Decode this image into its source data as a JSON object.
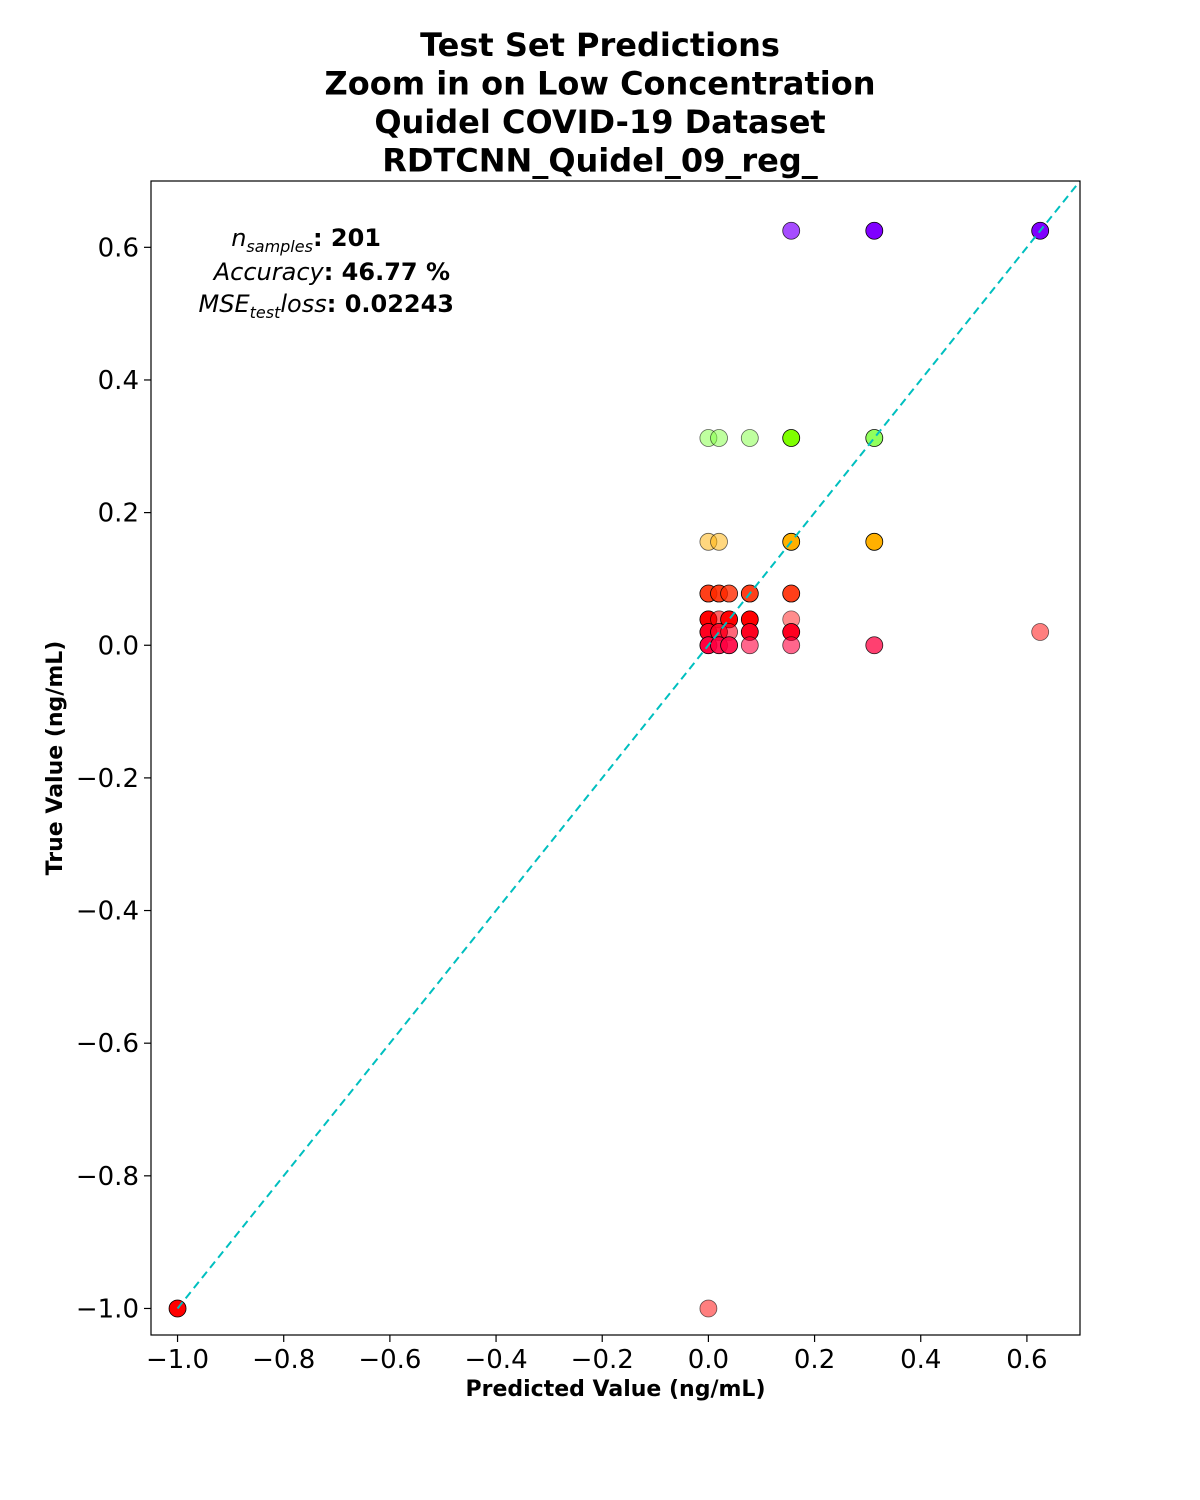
{
  "chart_data": {
    "type": "scatter",
    "title": [
      "Test Set Predictions",
      "Zoom in on Low Concentration",
      "Quidel COVID-19 Dataset",
      "RDTCNN_Quidel_09_reg_"
    ],
    "xlabel": "Predicted Value (ng/mL)",
    "ylabel": "True Value (ng/mL)",
    "xlim": [
      -1.05,
      0.7
    ],
    "ylim": [
      -1.04,
      0.7
    ],
    "xticks": [
      -1.0,
      -0.8,
      -0.6,
      -0.4,
      -0.2,
      0.0,
      0.2,
      0.4,
      0.6
    ],
    "xtick_labels": [
      "−1.0",
      "−0.8",
      "−0.6",
      "−0.4",
      "−0.2",
      "0.0",
      "0.2",
      "0.4",
      "0.6"
    ],
    "yticks": [
      -1.0,
      -0.8,
      -0.6,
      -0.4,
      -0.2,
      0.0,
      0.2,
      0.4,
      0.6
    ],
    "ytick_labels": [
      "−1.0",
      "−0.8",
      "−0.6",
      "−0.4",
      "−0.2",
      "0.0",
      "0.2",
      "0.4",
      "0.6"
    ],
    "grid": false,
    "reference_line": {
      "type": "identity",
      "color": "#00bfbf",
      "style": "dashed"
    },
    "stats": {
      "n_label": "n",
      "n_sub": "samples",
      "n_value": ": 201",
      "acc_label": "Accuracy",
      "acc_value": ":  46.77 %",
      "mse_label": "MSE",
      "mse_sub": "test",
      "mse_label2": "loss",
      "mse_value": ":  0.02243"
    },
    "points": [
      {
        "x": 0.156,
        "y": 0.625,
        "color": "#8000ff",
        "alpha": 0.7
      },
      {
        "x": 0.3125,
        "y": 0.625,
        "color": "#8000ff",
        "alpha": 1.0
      },
      {
        "x": 0.625,
        "y": 0.625,
        "color": "#8000ff",
        "alpha": 1.0
      },
      {
        "x": 0.0,
        "y": 0.3125,
        "color": "#7fff40",
        "alpha": 0.5
      },
      {
        "x": 0.02,
        "y": 0.3125,
        "color": "#7fff40",
        "alpha": 0.5
      },
      {
        "x": 0.078,
        "y": 0.3125,
        "color": "#7fff40",
        "alpha": 0.5
      },
      {
        "x": 0.156,
        "y": 0.3125,
        "color": "#7fff00",
        "alpha": 1.0
      },
      {
        "x": 0.3125,
        "y": 0.3125,
        "color": "#7fff40",
        "alpha": 0.85
      },
      {
        "x": 0.0,
        "y": 0.156,
        "color": "#ffb000",
        "alpha": 0.5
      },
      {
        "x": 0.02,
        "y": 0.156,
        "color": "#ffb000",
        "alpha": 0.5
      },
      {
        "x": 0.156,
        "y": 0.156,
        "color": "#ffb000",
        "alpha": 1.0
      },
      {
        "x": 0.3125,
        "y": 0.156,
        "color": "#ffb000",
        "alpha": 1.0
      },
      {
        "x": 0.0,
        "y": 0.078,
        "color": "#ff2a00",
        "alpha": 0.9
      },
      {
        "x": 0.02,
        "y": 0.078,
        "color": "#ff2a00",
        "alpha": 0.9
      },
      {
        "x": 0.039,
        "y": 0.078,
        "color": "#ff2a00",
        "alpha": 0.8
      },
      {
        "x": 0.078,
        "y": 0.078,
        "color": "#ff2a00",
        "alpha": 0.9
      },
      {
        "x": 0.156,
        "y": 0.078,
        "color": "#ff2a00",
        "alpha": 0.9
      },
      {
        "x": 0.0,
        "y": 0.039,
        "color": "#ff0000",
        "alpha": 1.0
      },
      {
        "x": 0.02,
        "y": 0.039,
        "color": "#ff0000",
        "alpha": 0.6
      },
      {
        "x": 0.039,
        "y": 0.039,
        "color": "#ff0000",
        "alpha": 1.0
      },
      {
        "x": 0.078,
        "y": 0.039,
        "color": "#ff0000",
        "alpha": 1.0
      },
      {
        "x": 0.156,
        "y": 0.039,
        "color": "#ff0000",
        "alpha": 0.45
      },
      {
        "x": 0.0,
        "y": 0.02,
        "color": "#ff0020",
        "alpha": 1.0
      },
      {
        "x": 0.02,
        "y": 0.02,
        "color": "#ff0020",
        "alpha": 0.9
      },
      {
        "x": 0.039,
        "y": 0.02,
        "color": "#ff0020",
        "alpha": 0.6
      },
      {
        "x": 0.078,
        "y": 0.02,
        "color": "#ff0020",
        "alpha": 1.0
      },
      {
        "x": 0.156,
        "y": 0.02,
        "color": "#ff0020",
        "alpha": 1.0
      },
      {
        "x": 0.625,
        "y": 0.02,
        "color": "#ff0000",
        "alpha": 0.5
      },
      {
        "x": 0.0,
        "y": 0.0,
        "color": "#ff0040",
        "alpha": 1.0
      },
      {
        "x": 0.02,
        "y": 0.0,
        "color": "#ff0040",
        "alpha": 0.9
      },
      {
        "x": 0.039,
        "y": 0.0,
        "color": "#ff0040",
        "alpha": 0.9
      },
      {
        "x": 0.078,
        "y": 0.0,
        "color": "#ff0040",
        "alpha": 0.6
      },
      {
        "x": 0.156,
        "y": 0.0,
        "color": "#ff0040",
        "alpha": 0.6
      },
      {
        "x": 0.3125,
        "y": 0.0,
        "color": "#ff0040",
        "alpha": 0.75
      },
      {
        "x": -1.0,
        "y": -1.0,
        "color": "#ff0000",
        "alpha": 1.0
      },
      {
        "x": 0.0,
        "y": -1.0,
        "color": "#ff0000",
        "alpha": 0.5
      }
    ]
  }
}
